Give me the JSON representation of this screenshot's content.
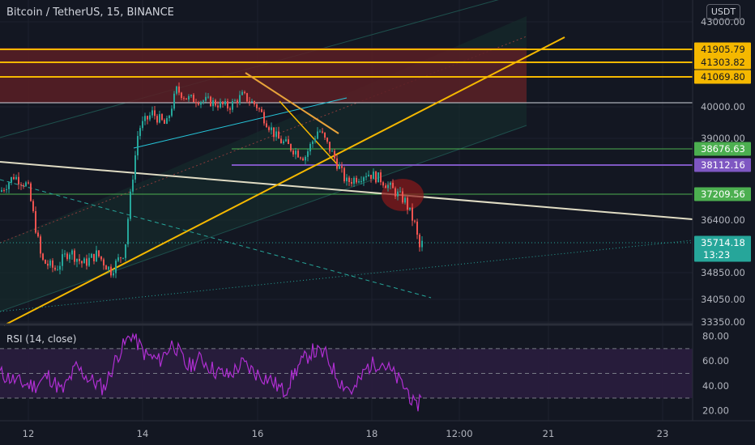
{
  "header": {
    "symbol_label": "Bitcoin / TetherUS, 15, BINANCE",
    "currency_button": "USDT"
  },
  "colors": {
    "background": "#131722",
    "grid": "#1e222d",
    "up": "#26a69a",
    "down": "#ef5350",
    "resistance_zone": "#5a1e25",
    "yellow_line": "#f5b800",
    "orange_line": "#e8a33a",
    "white_line": "#e0dcc4",
    "purple_line": "#7e57c2",
    "green_line": "#4caf50",
    "channel": "#1e4f4c",
    "rsi_line": "#b02fd3",
    "rsi_band": "#2a1d3e"
  },
  "chart_data": [
    {
      "type": "candlestick",
      "title": "Bitcoin / TetherUS, 15, BINANCE",
      "x_ticks": [
        "12",
        "14",
        "16",
        "18",
        "12:00",
        "21",
        "23"
      ],
      "y_ticks": [
        "43000.00",
        "40000.00",
        "39000.00",
        "36400.00",
        "34850.00",
        "34050.00",
        "33350.00"
      ],
      "ylim": [
        33350,
        43300
      ],
      "ohlc_path": [
        [
          0.0,
          37300
        ],
        [
          0.02,
          37800
        ],
        [
          0.04,
          37500
        ],
        [
          0.06,
          35200
        ],
        [
          0.08,
          34950
        ],
        [
          0.1,
          35500
        ],
        [
          0.12,
          35100
        ],
        [
          0.14,
          35400
        ],
        [
          0.16,
          34900
        ],
        [
          0.18,
          35500
        ],
        [
          0.19,
          37500
        ],
        [
          0.2,
          39300
        ],
        [
          0.22,
          39800
        ],
        [
          0.24,
          39400
        ],
        [
          0.255,
          40600
        ],
        [
          0.27,
          40300
        ],
        [
          0.3,
          40200
        ],
        [
          0.33,
          40000
        ],
        [
          0.35,
          40400
        ],
        [
          0.37,
          40050
        ],
        [
          0.4,
          39000
        ],
        [
          0.42,
          38700
        ],
        [
          0.44,
          38400
        ],
        [
          0.46,
          39300
        ],
        [
          0.48,
          38500
        ],
        [
          0.5,
          37600
        ],
        [
          0.53,
          37900
        ],
        [
          0.55,
          37700
        ],
        [
          0.57,
          37300
        ],
        [
          0.585,
          37000
        ],
        [
          0.6,
          36200
        ],
        [
          0.605,
          35550
        ],
        [
          0.61,
          35720
        ]
      ],
      "price_labels": [
        {
          "text": "41905.79",
          "kind": "level",
          "color": "#f5b800"
        },
        {
          "text": "41303.82",
          "kind": "level",
          "color": "#f5b800"
        },
        {
          "text": "41069.80",
          "kind": "level",
          "color": "#f5b800"
        },
        {
          "text": "38676.63",
          "kind": "level",
          "color": "#4caf50"
        },
        {
          "text": "38112.16",
          "kind": "level",
          "color": "#7e57c2"
        },
        {
          "text": "37209.56",
          "kind": "level",
          "color": "#4caf50"
        },
        {
          "text": "35714.18",
          "kind": "last",
          "color": "#26a69a",
          "sub": "13:23"
        }
      ]
    },
    {
      "type": "line",
      "title": "RSI (14, close)",
      "y_ticks": [
        "80.00",
        "60.00",
        "40.00",
        "20.00"
      ],
      "ylim": [
        15,
        83
      ],
      "bands": [
        70,
        50,
        30
      ],
      "rsi_path": [
        [
          0.0,
          50
        ],
        [
          0.03,
          42
        ],
        [
          0.05,
          40
        ],
        [
          0.07,
          48
        ],
        [
          0.09,
          35
        ],
        [
          0.11,
          55
        ],
        [
          0.13,
          45
        ],
        [
          0.15,
          38
        ],
        [
          0.17,
          65
        ],
        [
          0.19,
          82
        ],
        [
          0.21,
          65
        ],
        [
          0.23,
          60
        ],
        [
          0.25,
          75
        ],
        [
          0.27,
          55
        ],
        [
          0.29,
          62
        ],
        [
          0.31,
          52
        ],
        [
          0.33,
          48
        ],
        [
          0.35,
          58
        ],
        [
          0.37,
          50
        ],
        [
          0.39,
          45
        ],
        [
          0.41,
          35
        ],
        [
          0.43,
          55
        ],
        [
          0.45,
          68
        ],
        [
          0.47,
          65
        ],
        [
          0.49,
          44
        ],
        [
          0.51,
          35
        ],
        [
          0.53,
          55
        ],
        [
          0.55,
          60
        ],
        [
          0.57,
          48
        ],
        [
          0.59,
          35
        ],
        [
          0.6,
          20
        ],
        [
          0.61,
          36
        ]
      ]
    }
  ]
}
